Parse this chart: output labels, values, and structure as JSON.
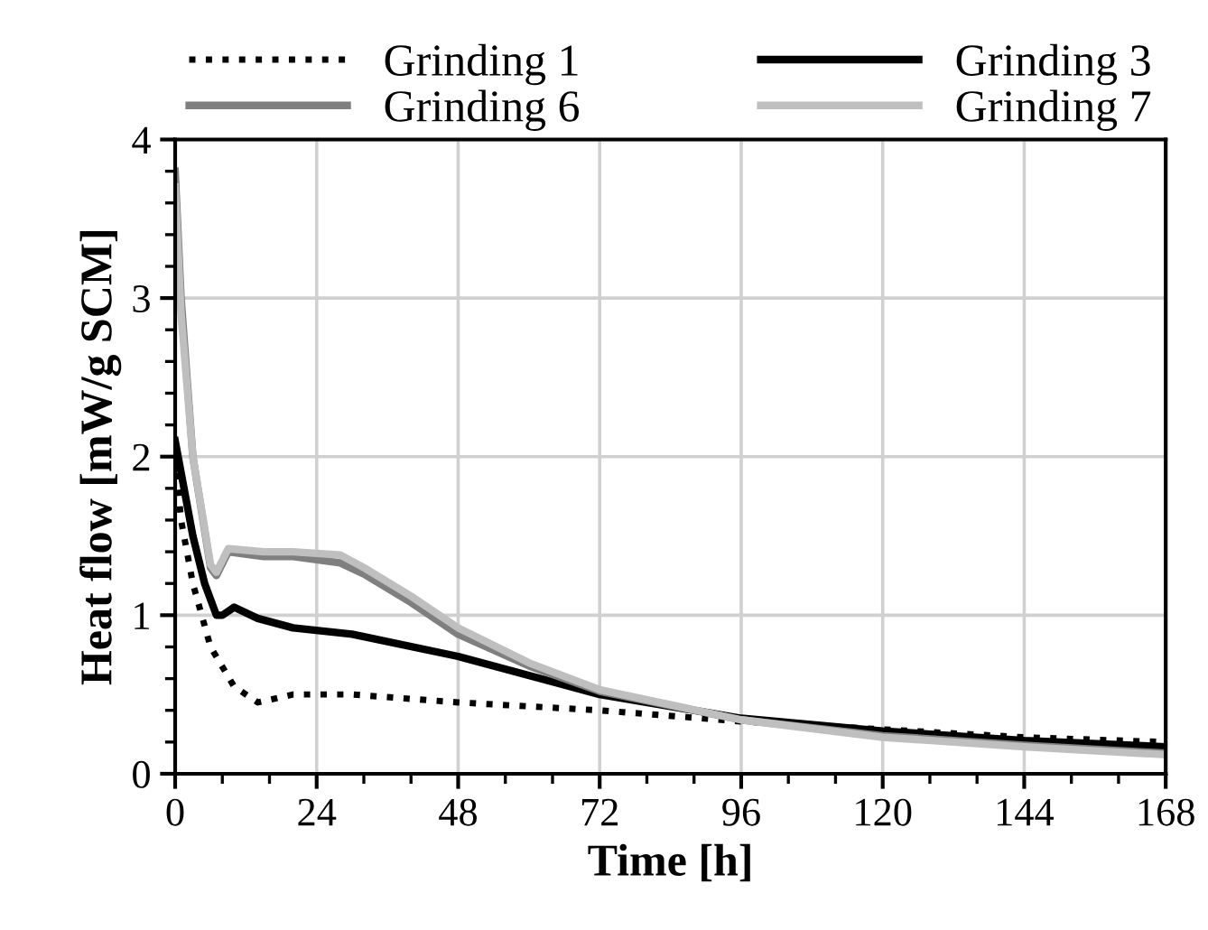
{
  "chart_data": {
    "type": "line",
    "xlabel": "Time [h]",
    "ylabel": "Heat flow [mW/g SCM]",
    "xlim": [
      0,
      168
    ],
    "xticks": [
      0,
      24,
      48,
      72,
      96,
      120,
      144,
      168
    ],
    "ylim": [
      0,
      4
    ],
    "yticks": [
      0,
      1,
      2,
      3,
      4
    ],
    "grid": true,
    "legend": "top",
    "series": [
      {
        "name": "Grinding 1",
        "color": "#000000",
        "line_style": "dotted",
        "x": [
          0,
          1,
          3,
          6,
          10,
          14,
          20,
          30,
          48,
          72,
          96,
          120,
          144,
          168
        ],
        "values": [
          2.0,
          1.6,
          1.2,
          0.8,
          0.55,
          0.45,
          0.5,
          0.5,
          0.45,
          0.4,
          0.33,
          0.28,
          0.23,
          0.2
        ]
      },
      {
        "name": "Grinding 3",
        "color": "#000000",
        "line_style": "solid",
        "x": [
          0,
          1,
          3,
          5,
          7,
          8,
          10,
          14,
          20,
          30,
          48,
          72,
          96,
          120,
          144,
          168
        ],
        "values": [
          2.1,
          1.9,
          1.5,
          1.2,
          1.0,
          1.0,
          1.05,
          0.98,
          0.92,
          0.88,
          0.74,
          0.5,
          0.35,
          0.27,
          0.21,
          0.17
        ]
      },
      {
        "name": "Grinding 6",
        "color": "#7f7f7f",
        "line_style": "solid",
        "x": [
          0,
          1,
          3,
          6,
          7,
          9,
          15,
          20,
          28,
          32,
          40,
          48,
          60,
          72,
          96,
          120,
          144,
          168
        ],
        "values": [
          3.8,
          3.0,
          2.0,
          1.3,
          1.25,
          1.4,
          1.37,
          1.37,
          1.33,
          1.26,
          1.08,
          0.88,
          0.68,
          0.52,
          0.34,
          0.24,
          0.18,
          0.13
        ]
      },
      {
        "name": "Grinding 7",
        "color": "#bfbfbf",
        "line_style": "solid",
        "x": [
          0,
          1,
          3,
          6,
          7,
          9,
          15,
          20,
          28,
          32,
          40,
          48,
          60,
          72,
          96,
          120,
          144,
          168
        ],
        "values": [
          3.7,
          2.9,
          2.0,
          1.32,
          1.27,
          1.42,
          1.4,
          1.4,
          1.38,
          1.3,
          1.12,
          0.92,
          0.7,
          0.53,
          0.34,
          0.23,
          0.17,
          0.12
        ]
      }
    ]
  }
}
